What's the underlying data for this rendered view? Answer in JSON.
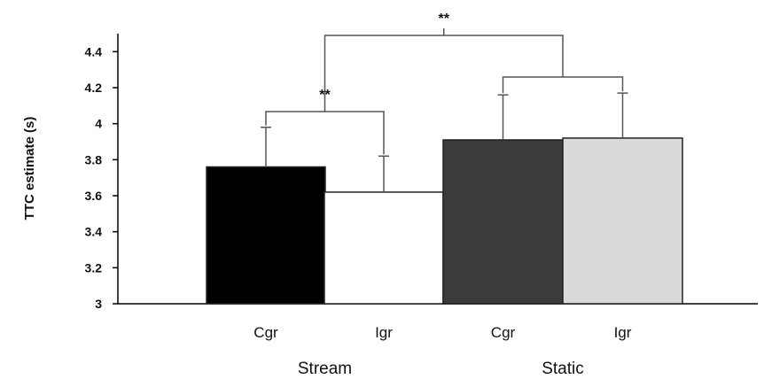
{
  "chart_data": {
    "type": "bar",
    "ylabel": "TTC estimate (s)",
    "ylim": [
      3,
      4.5
    ],
    "yticks": [
      "3",
      "3.2",
      "3.4",
      "3.6",
      "3.8",
      "4",
      "4.2",
      "4.4"
    ],
    "categories": [
      "Cgr",
      "Igr",
      "Cgr",
      "Igr"
    ],
    "groups": [
      {
        "label": "Stream",
        "categories": [
          "Cgr",
          "Igr"
        ]
      },
      {
        "label": "Static",
        "categories": [
          "Cgr",
          "Igr"
        ]
      }
    ],
    "values": [
      3.76,
      3.62,
      3.91,
      3.92
    ],
    "error_upper": [
      3.98,
      3.82,
      4.16,
      4.17
    ],
    "bar_colors": [
      "#000000",
      "#ffffff",
      "#3b3b3b",
      "#d9d9d9"
    ],
    "significance": [
      {
        "label": "**",
        "between": "Stream Cgr vs Stream Igr"
      },
      {
        "label": "**",
        "between": "Stream vs Static"
      }
    ],
    "grid": false,
    "legend": "none"
  }
}
